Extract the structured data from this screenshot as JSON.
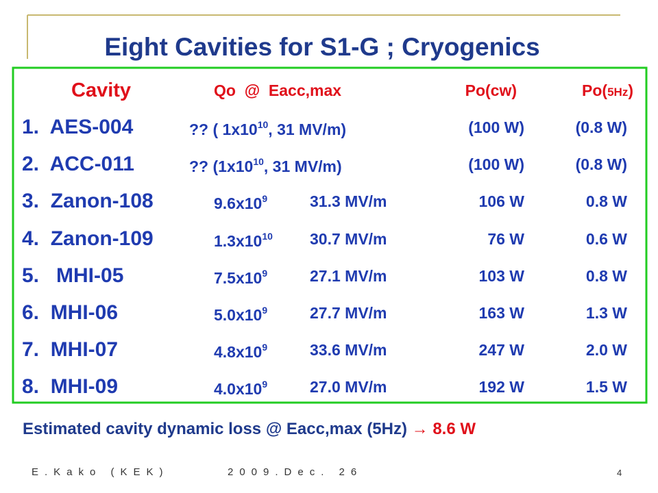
{
  "title": "Eight Cavities for S1-G ; Cryogenics",
  "table": {
    "header": {
      "cavity": "Cavity",
      "qo_eacc": "Qo  @  Eacc,max",
      "po_cw": "Po(cw)",
      "po_5hz": {
        "text": "Po(",
        "small": "5Hz",
        "after": ")"
      }
    },
    "rows": [
      {
        "name": "1.  AES-004",
        "qo": {
          "text": "?? ( 1x10",
          "sup": "10",
          "after": ", 31 MV/m)"
        },
        "po_cw": "(100 W)",
        "po_5hz": "(0.8 W)"
      },
      {
        "name": "2.  ACC-011",
        "qo": {
          "text": "?? (1x10",
          "sup": "10",
          "after": ", 31 MV/m)"
        },
        "po_cw": "(100 W)",
        "po_5hz": "(0.8 W)"
      },
      {
        "name": "3.  Zanon-108",
        "qo": {
          "text": "9.6x10",
          "sup": "9"
        },
        "eacc": "31.3 MV/m",
        "po_cw": "106 W",
        "po_5hz": "0.8 W"
      },
      {
        "name": "4.  Zanon-109",
        "qo": {
          "text": "1.3x10",
          "sup": "10"
        },
        "eacc": "30.7 MV/m",
        "po_cw": "76 W",
        "po_5hz": "0.6 W"
      },
      {
        "name": "5.   MHI-05",
        "qo": {
          "text": "7.5x10",
          "sup": "9"
        },
        "eacc": "27.1 MV/m",
        "po_cw": "103 W",
        "po_5hz": "0.8 W"
      },
      {
        "name": "6.  MHI-06",
        "qo": {
          "text": "5.0x10",
          "sup": "9"
        },
        "eacc": "27.7 MV/m",
        "po_cw": "163 W",
        "po_5hz": "1.3 W"
      },
      {
        "name": "7.  MHI-07",
        "qo": {
          "text": "4.8x10",
          "sup": "9"
        },
        "eacc": "33.6 MV/m",
        "po_cw": "247 W",
        "po_5hz": "2.0 W"
      },
      {
        "name": "8.  MHI-09",
        "qo": {
          "text": "4.0x10",
          "sup": "9"
        },
        "eacc": "27.0 MV/m",
        "po_cw": "192 W",
        "po_5hz": "1.5 W"
      }
    ]
  },
  "summary": {
    "text": "Estimated cavity dynamic loss @ Eacc,max (5Hz)",
    "arrow": "→",
    "result": "8.6 W"
  },
  "footer": {
    "author": "E.Kako (KEK)",
    "date": "2009.Dec. 26",
    "page": "4"
  }
}
